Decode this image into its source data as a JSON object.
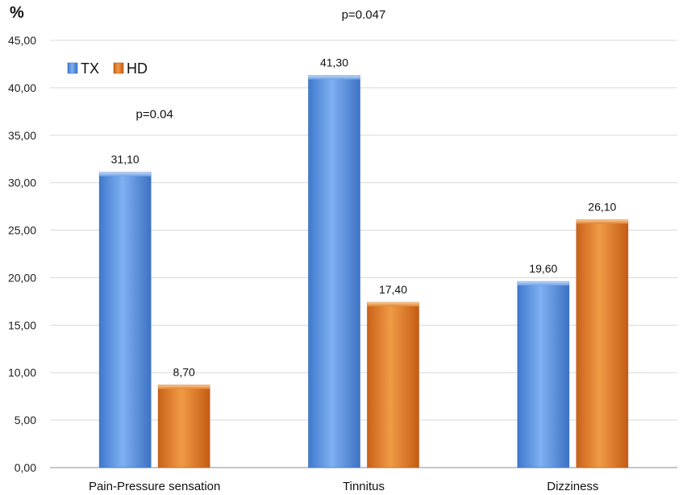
{
  "chart_data": {
    "type": "bar",
    "unit_label": "%",
    "categories": [
      "Pain-Pressure sensation",
      "Tinnitus",
      "Dizziness"
    ],
    "series": [
      {
        "name": "TX",
        "values": [
          31.1,
          41.3,
          19.6
        ],
        "labels": [
          "31,10",
          "41,30",
          "19,60"
        ],
        "color": "#5b93e0"
      },
      {
        "name": "HD",
        "values": [
          8.7,
          17.4,
          26.1
        ],
        "labels": [
          "8,70",
          "17,40",
          "26,10"
        ],
        "color": "#e07a24"
      }
    ],
    "ylim": [
      0,
      45
    ],
    "yticks": [
      0,
      5,
      10,
      15,
      20,
      25,
      30,
      35,
      40,
      45
    ],
    "ytick_labels": [
      "0,00",
      "5,00",
      "10,00",
      "15,00",
      "20,00",
      "25,00",
      "30,00",
      "35,00",
      "40,00",
      "45,00"
    ],
    "annotations": [
      {
        "text": "p=0.04",
        "category": "Pain-Pressure sensation",
        "value": 36.8
      },
      {
        "text": "p=0.047",
        "category": "Tinnitus",
        "value": 47.3
      }
    ],
    "legend": {
      "position": "top-left"
    },
    "grid": true
  }
}
